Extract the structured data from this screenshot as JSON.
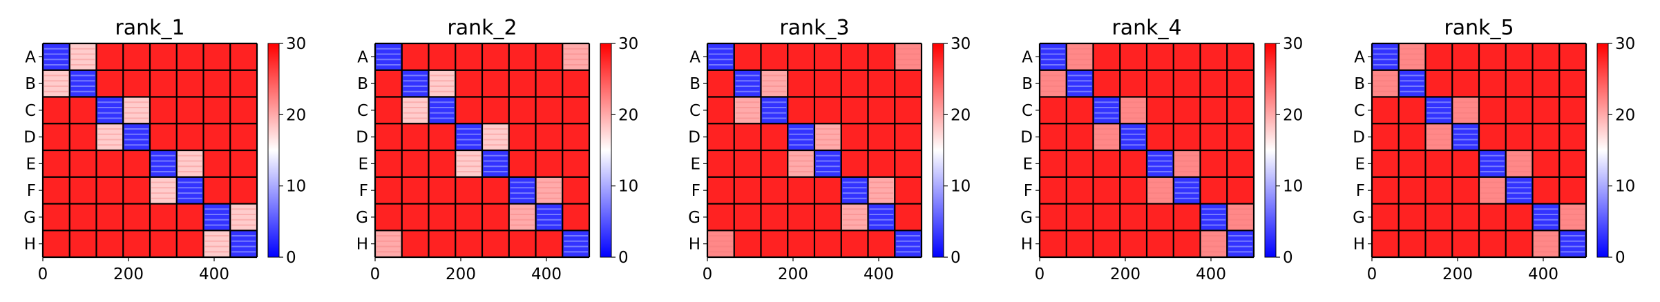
{
  "chart_data": [
    {
      "type": "heatmap",
      "title": "rank_1",
      "row_labels": [
        "A",
        "B",
        "C",
        "D",
        "E",
        "F",
        "G",
        "H"
      ],
      "x_ticks": [
        0,
        200,
        400
      ],
      "xlim": [
        0,
        500
      ],
      "colorbar": {
        "min": 0,
        "max": 30,
        "ticks": [
          0,
          10,
          20,
          30
        ],
        "colors": {
          "low": "#0000ff",
          "mid": "#ffffff",
          "high": "#ff0000"
        }
      },
      "block_levels": [
        [
          3,
          18,
          28,
          28,
          28,
          28,
          28,
          28
        ],
        [
          18,
          3,
          28,
          28,
          28,
          28,
          28,
          28
        ],
        [
          28,
          28,
          3,
          18,
          28,
          28,
          28,
          28
        ],
        [
          28,
          28,
          18,
          3,
          28,
          28,
          28,
          28
        ],
        [
          28,
          28,
          28,
          28,
          3,
          18,
          28,
          28
        ],
        [
          28,
          28,
          28,
          28,
          18,
          3,
          28,
          28
        ],
        [
          28,
          28,
          28,
          28,
          28,
          28,
          3,
          18
        ],
        [
          28,
          28,
          28,
          28,
          28,
          28,
          18,
          3
        ]
      ]
    },
    {
      "type": "heatmap",
      "title": "rank_2",
      "row_labels": [
        "A",
        "B",
        "C",
        "D",
        "E",
        "F",
        "G",
        "H"
      ],
      "x_ticks": [
        0,
        200,
        400
      ],
      "xlim": [
        0,
        500
      ],
      "colorbar": {
        "min": 0,
        "max": 30,
        "ticks": [
          0,
          10,
          20,
          30
        ],
        "colors": {
          "low": "#0000ff",
          "mid": "#ffffff",
          "high": "#ff0000"
        }
      },
      "block_levels": [
        [
          3,
          28,
          28,
          28,
          28,
          28,
          28,
          20
        ],
        [
          28,
          3,
          18,
          28,
          28,
          28,
          28,
          28
        ],
        [
          28,
          18,
          3,
          28,
          28,
          28,
          28,
          28
        ],
        [
          28,
          28,
          28,
          3,
          18,
          28,
          28,
          28
        ],
        [
          28,
          28,
          28,
          18,
          3,
          28,
          28,
          28
        ],
        [
          28,
          28,
          28,
          28,
          28,
          3,
          20,
          28
        ],
        [
          28,
          28,
          28,
          28,
          28,
          20,
          3,
          28
        ],
        [
          20,
          28,
          28,
          28,
          28,
          28,
          28,
          3
        ]
      ]
    },
    {
      "type": "heatmap",
      "title": "rank_3",
      "row_labels": [
        "A",
        "B",
        "C",
        "D",
        "E",
        "F",
        "G",
        "H"
      ],
      "x_ticks": [
        0,
        200,
        400
      ],
      "xlim": [
        0,
        500
      ],
      "colorbar": {
        "min": 0,
        "max": 30,
        "ticks": [
          0,
          10,
          20,
          30
        ],
        "colors": {
          "low": "#0000ff",
          "mid": "#ffffff",
          "high": "#ff0000"
        }
      },
      "block_levels": [
        [
          3,
          28,
          28,
          28,
          28,
          28,
          28,
          22
        ],
        [
          28,
          3,
          20,
          28,
          28,
          28,
          28,
          28
        ],
        [
          28,
          20,
          3,
          28,
          28,
          28,
          28,
          28
        ],
        [
          28,
          28,
          28,
          3,
          20,
          28,
          28,
          28
        ],
        [
          28,
          28,
          28,
          20,
          3,
          28,
          28,
          28
        ],
        [
          28,
          28,
          28,
          28,
          28,
          3,
          20,
          28
        ],
        [
          28,
          28,
          28,
          28,
          28,
          20,
          3,
          28
        ],
        [
          22,
          28,
          28,
          28,
          28,
          28,
          28,
          3
        ]
      ]
    },
    {
      "type": "heatmap",
      "title": "rank_4",
      "row_labels": [
        "A",
        "B",
        "C",
        "D",
        "E",
        "F",
        "G",
        "H"
      ],
      "x_ticks": [
        0,
        200,
        400
      ],
      "xlim": [
        0,
        500
      ],
      "colorbar": {
        "min": 0,
        "max": 30,
        "ticks": [
          0,
          10,
          20,
          30
        ],
        "colors": {
          "low": "#0000ff",
          "mid": "#ffffff",
          "high": "#ff0000"
        }
      },
      "block_levels": [
        [
          3,
          22,
          28,
          28,
          28,
          28,
          28,
          28
        ],
        [
          22,
          3,
          28,
          28,
          28,
          28,
          28,
          28
        ],
        [
          28,
          28,
          3,
          22,
          28,
          28,
          28,
          28
        ],
        [
          28,
          28,
          22,
          3,
          28,
          28,
          28,
          28
        ],
        [
          28,
          28,
          28,
          28,
          3,
          22,
          28,
          28
        ],
        [
          28,
          28,
          28,
          28,
          22,
          3,
          28,
          28
        ],
        [
          28,
          28,
          28,
          28,
          28,
          28,
          3,
          22
        ],
        [
          28,
          28,
          28,
          28,
          28,
          28,
          22,
          3
        ]
      ]
    },
    {
      "type": "heatmap",
      "title": "rank_5",
      "row_labels": [
        "A",
        "B",
        "C",
        "D",
        "E",
        "F",
        "G",
        "H"
      ],
      "x_ticks": [
        0,
        200,
        400
      ],
      "xlim": [
        0,
        500
      ],
      "colorbar": {
        "min": 0,
        "max": 30,
        "ticks": [
          0,
          10,
          20,
          30
        ],
        "colors": {
          "low": "#0000ff",
          "mid": "#ffffff",
          "high": "#ff0000"
        }
      },
      "block_levels": [
        [
          3,
          22,
          28,
          28,
          28,
          28,
          28,
          28
        ],
        [
          22,
          3,
          28,
          28,
          28,
          28,
          28,
          28
        ],
        [
          28,
          28,
          3,
          22,
          28,
          28,
          28,
          28
        ],
        [
          28,
          28,
          22,
          3,
          28,
          28,
          28,
          28
        ],
        [
          28,
          28,
          28,
          28,
          3,
          22,
          28,
          28
        ],
        [
          28,
          28,
          28,
          28,
          22,
          3,
          28,
          28
        ],
        [
          28,
          28,
          28,
          28,
          28,
          28,
          3,
          22
        ],
        [
          28,
          28,
          28,
          28,
          28,
          28,
          22,
          3
        ]
      ]
    }
  ]
}
